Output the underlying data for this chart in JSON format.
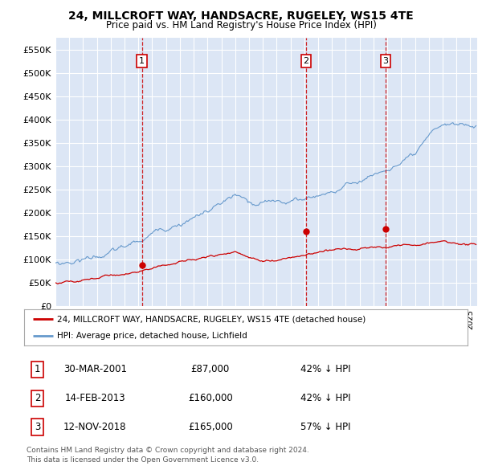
{
  "title1": "24, MILLCROFT WAY, HANDSACRE, RUGELEY, WS15 4TE",
  "title2": "Price paid vs. HM Land Registry's House Price Index (HPI)",
  "ylabel_ticks": [
    "£0",
    "£50K",
    "£100K",
    "£150K",
    "£200K",
    "£250K",
    "£300K",
    "£350K",
    "£400K",
    "£450K",
    "£500K",
    "£550K"
  ],
  "ytick_vals": [
    0,
    50000,
    100000,
    150000,
    200000,
    250000,
    300000,
    350000,
    400000,
    450000,
    500000,
    550000
  ],
  "ylim": [
    0,
    575000
  ],
  "xlim_start": 1995.0,
  "xlim_end": 2025.5,
  "background_color": "#dce6f5",
  "grid_color": "#ffffff",
  "sale_dates": [
    2001.25,
    2013.12,
    2018.88
  ],
  "sale_prices": [
    87000,
    160000,
    165000
  ],
  "sale_labels": [
    "1",
    "2",
    "3"
  ],
  "legend_label_red": "24, MILLCROFT WAY, HANDSACRE, RUGELEY, WS15 4TE (detached house)",
  "legend_label_blue": "HPI: Average price, detached house, Lichfield",
  "table_rows": [
    [
      "1",
      "30-MAR-2001",
      "£87,000",
      "42% ↓ HPI"
    ],
    [
      "2",
      "14-FEB-2013",
      "£160,000",
      "42% ↓ HPI"
    ],
    [
      "3",
      "12-NOV-2018",
      "£165,000",
      "57% ↓ HPI"
    ]
  ],
  "footnote1": "Contains HM Land Registry data © Crown copyright and database right 2024.",
  "footnote2": "This data is licensed under the Open Government Licence v3.0.",
  "red_color": "#cc0000",
  "blue_color": "#6699cc",
  "dashed_color": "#cc0000",
  "hpi_seed": 10,
  "pp_seed": 20
}
